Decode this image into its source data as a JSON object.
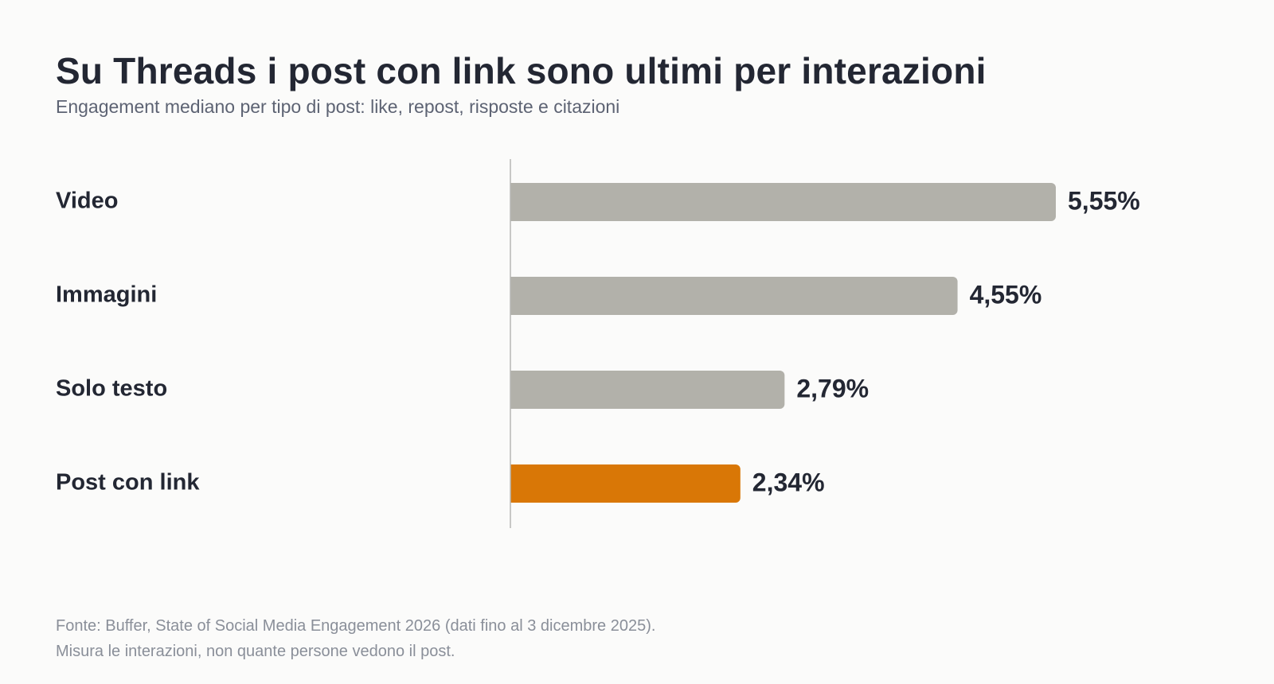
{
  "header": {
    "title": "Su Threads i post con link sono ultimi per interazioni",
    "subtitle": "Engagement mediano per tipo di post: like, repost, risposte e citazioni"
  },
  "chart_data": {
    "type": "bar",
    "orientation": "horizontal",
    "categories": [
      "Video",
      "Immagini",
      "Solo testo",
      "Post con link"
    ],
    "values": [
      5.55,
      4.55,
      2.79,
      2.34
    ],
    "value_labels": [
      "5,55%",
      "4,55%",
      "2,79%",
      "2,34%"
    ],
    "unit": "%",
    "highlight_category": "Post con link",
    "colors": {
      "default": "#b2b1aa",
      "highlight": "#d97706",
      "axis": "#b8b8b4"
    },
    "xlim": [
      0,
      5.55
    ],
    "grid": false,
    "legend": "none"
  },
  "footer": {
    "source": "Fonte: Buffer, State of Social Media Engagement 2026 (dati fino al 3 dicembre 2025).",
    "note": "Misura le interazioni, non quante persone vedono il post."
  }
}
